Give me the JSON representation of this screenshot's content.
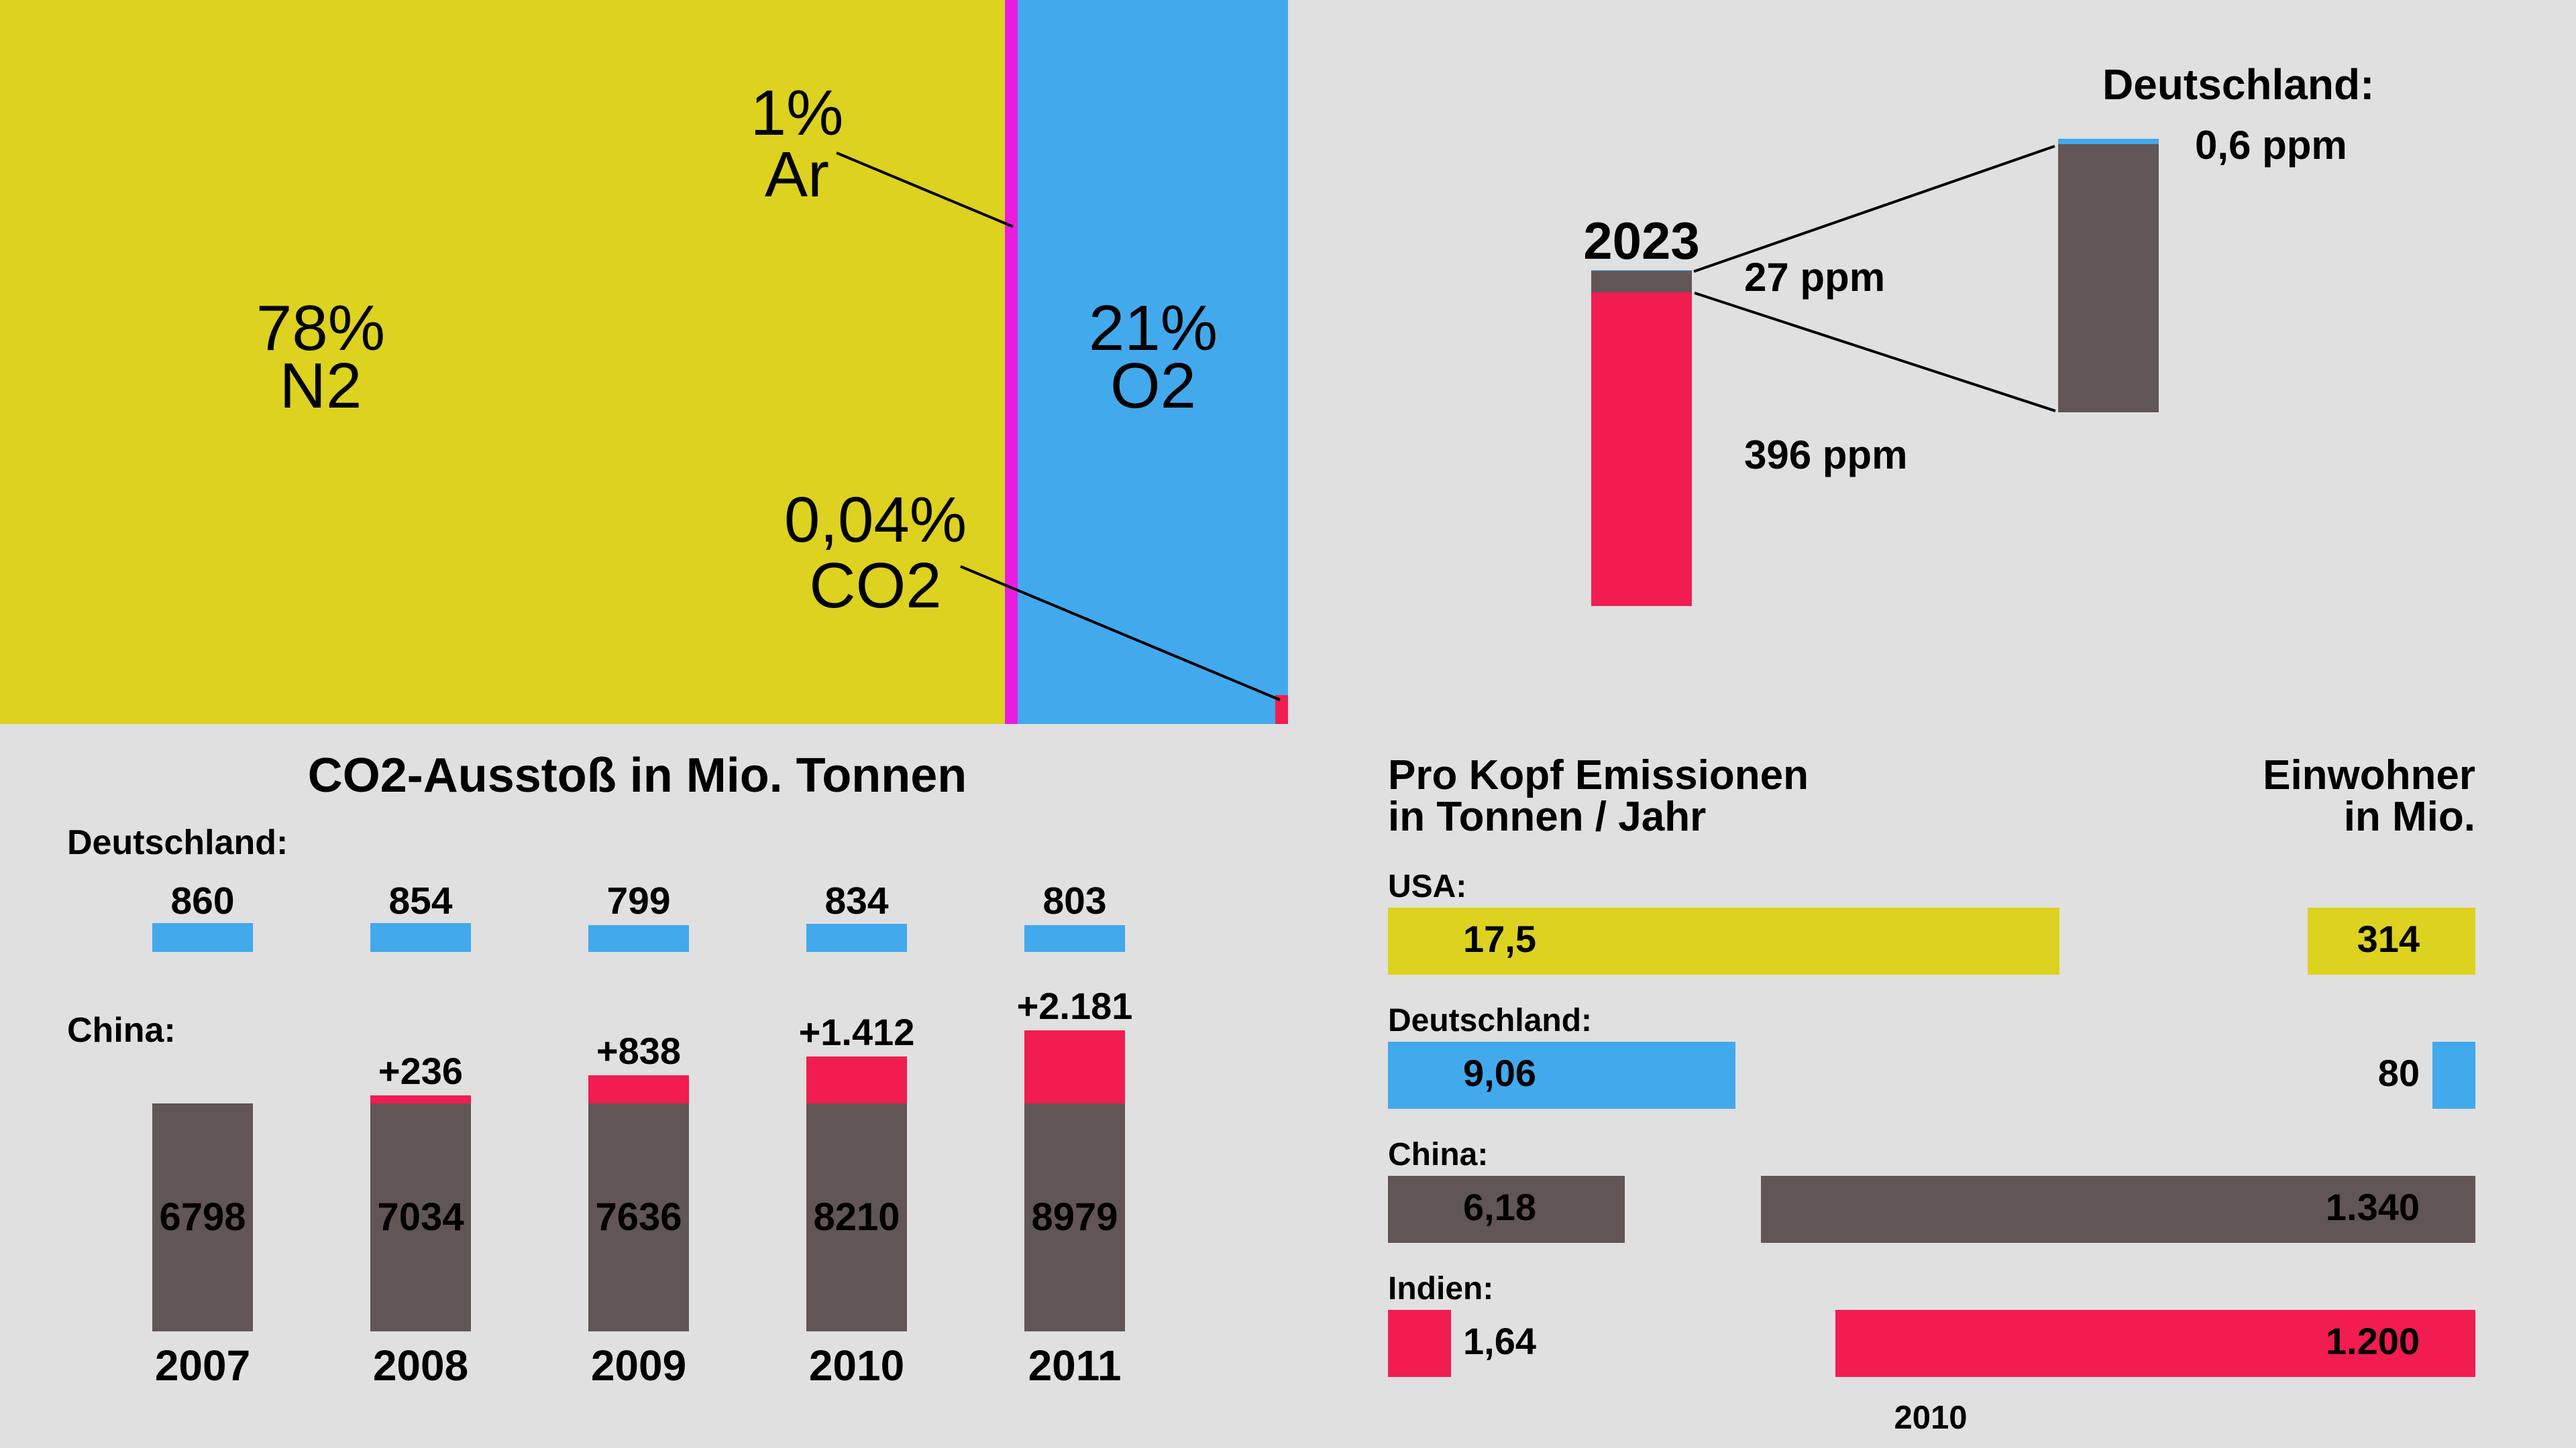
{
  "colors": {
    "background": "#E0E0E0",
    "yellow": "#DCD21F",
    "magenta": "#E91CE0",
    "blue": "#42A9EC",
    "red": "#F11C50",
    "dark": "#625556"
  },
  "atmosphere": {
    "n2": {
      "pct": "78%",
      "name": "N2",
      "value": 78
    },
    "ar": {
      "pct": "1%",
      "name": "Ar",
      "value": 1
    },
    "o2": {
      "pct": "21%",
      "name": "O2",
      "value": 21
    },
    "co2": {
      "pct": "0,04%",
      "name": "CO2",
      "value": 0.04
    }
  },
  "ppm": {
    "year": "2023",
    "natural_label": "396 ppm",
    "human_label": "27 ppm",
    "germany_title": "Deutschland:",
    "germany_label": "0,6 ppm",
    "natural": 396,
    "human": 27,
    "germany": 0.6
  },
  "emissions": {
    "title": "CO2-Ausstoß in Mio. Tonnen",
    "germany_label": "Deutschland:",
    "china_label": "China:",
    "years": [
      "2007",
      "2008",
      "2009",
      "2010",
      "2011"
    ],
    "germany": [
      {
        "label": "860",
        "value": 860
      },
      {
        "label": "854",
        "value": 854
      },
      {
        "label": "799",
        "value": 799
      },
      {
        "label": "834",
        "value": 834
      },
      {
        "label": "803",
        "value": 803
      }
    ],
    "china_base": 6798,
    "china": [
      {
        "label": "6798",
        "value": 6798,
        "increase_label": "",
        "increase": 0
      },
      {
        "label": "7034",
        "value": 7034,
        "increase_label": "+236",
        "increase": 236
      },
      {
        "label": "7636",
        "value": 7636,
        "increase_label": "+838",
        "increase": 838
      },
      {
        "label": "8210",
        "value": 8210,
        "increase_label": "+1.412",
        "increase": 1412
      },
      {
        "label": "8979",
        "value": 8979,
        "increase_label": "+2.181",
        "increase": 2181
      }
    ]
  },
  "per_capita": {
    "left_header_1": "Pro Kopf Emissionen",
    "left_header_2": "in Tonnen / Jahr",
    "right_header_1": "Einwohner",
    "right_header_2": "in Mio.",
    "footer": "2010",
    "rows": [
      {
        "country": "USA:",
        "per_capita_label": "17,5",
        "per_capita": 17.5,
        "population_label": "314",
        "population": 314,
        "color": "#DCD21F"
      },
      {
        "country": "Deutschland:",
        "per_capita_label": "9,06",
        "per_capita": 9.06,
        "population_label": "80",
        "population": 80,
        "color": "#42A9EC"
      },
      {
        "country": "China:",
        "per_capita_label": "6,18",
        "per_capita": 6.18,
        "population_label": "1.340",
        "population": 1340,
        "color": "#625556"
      },
      {
        "country": "Indien:",
        "per_capita_label": "1,64",
        "per_capita": 1.64,
        "population_label": "1.200",
        "population": 1200,
        "color": "#F11C50"
      }
    ]
  },
  "chart_data": [
    {
      "type": "bar",
      "title": "",
      "orientation": "horizontal-stacked-100",
      "categories": [
        "N2",
        "Ar",
        "O2",
        "CO2"
      ],
      "values": [
        78,
        1,
        21,
        0.04
      ],
      "labels": [
        "78%",
        "1%",
        "21%",
        "0,04%"
      ]
    },
    {
      "type": "bar",
      "title": "2023",
      "categories": [
        "2023",
        "Deutschland"
      ],
      "series": [
        {
          "name": "natural",
          "values": [
            396,
            null
          ]
        },
        {
          "name": "human",
          "values": [
            27,
            27
          ]
        },
        {
          "name": "Deutschland",
          "values": [
            0.6,
            0.6
          ]
        }
      ],
      "ylabel": "ppm"
    },
    {
      "type": "bar",
      "title": "CO2-Ausstoß in Mio. Tonnen",
      "categories": [
        "2007",
        "2008",
        "2009",
        "2010",
        "2011"
      ],
      "series": [
        {
          "name": "Deutschland",
          "values": [
            860,
            854,
            799,
            834,
            803
          ]
        },
        {
          "name": "China",
          "values": [
            6798,
            7034,
            7636,
            8210,
            8979
          ]
        },
        {
          "name": "China increase vs 2007",
          "values": [
            0,
            236,
            838,
            1412,
            2181
          ]
        }
      ]
    },
    {
      "type": "bar",
      "orientation": "horizontal",
      "title": "Pro Kopf Emissionen in Tonnen / Jahr",
      "categories": [
        "USA",
        "Deutschland",
        "China",
        "Indien"
      ],
      "values": [
        17.5,
        9.06,
        6.18,
        1.64
      ],
      "xlabel": "2010"
    },
    {
      "type": "bar",
      "orientation": "horizontal",
      "title": "Einwohner in Mio.",
      "categories": [
        "USA",
        "Deutschland",
        "China",
        "Indien"
      ],
      "values": [
        314,
        80,
        1340,
        1200
      ],
      "xlabel": "2010"
    }
  ]
}
